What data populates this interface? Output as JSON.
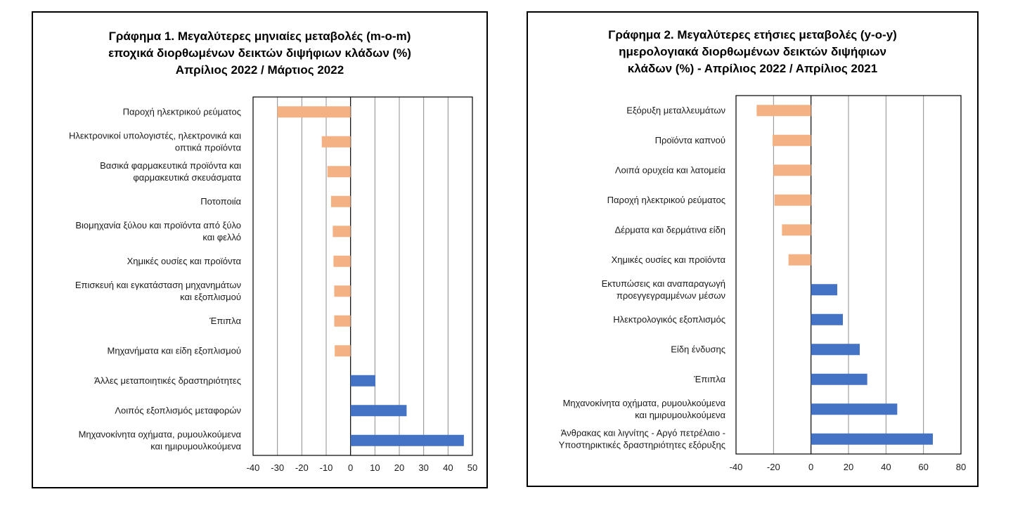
{
  "chart_data": [
    {
      "type": "bar",
      "orientation": "horizontal",
      "title_lines": [
        "Γράφημα 1. Μεγαλύτερες μηνιαίες μεταβολές (m-o-m)",
        "εποχικά διορθωμένων δεικτών διψήφιων κλάδων (%)",
        "Απρίλιος 2022 / Μάρτιος 2022"
      ],
      "categories": [
        [
          "Παροχή ηλεκτρικού ρεύματος"
        ],
        [
          "Ηλεκτρονικοί υπολογιστές, ηλεκτρονικά και",
          "οπτικά προϊόντα"
        ],
        [
          "Βασικά φαρμακευτικά προϊόντα και",
          "φαρμακευτικά σκευάσματα"
        ],
        [
          "Ποτοποιία"
        ],
        [
          "Βιομηχανία ξύλου και προϊόντα από ξύλο",
          "και φελλό"
        ],
        [
          "Χημικές ουσίες και προϊόντα"
        ],
        [
          "Επισκευή και εγκατάσταση μηχανημάτων",
          "και εξοπλισμού"
        ],
        [
          "Έπιπλα"
        ],
        [
          "Μηχανήματα και είδη εξοπλισμού"
        ],
        [
          "Άλλες μεταποιητικές δραστηριότητες"
        ],
        [
          "Λοιπός εξοπλισμός μεταφορών"
        ],
        [
          "Μηχανοκίνητα οχήματα, ρυμουλκούμενα",
          "και ημιρυμουλκούμενα"
        ]
      ],
      "values": [
        -30,
        -11.8,
        -9.5,
        -8,
        -7.3,
        -7,
        -6.7,
        -6.7,
        -6.5,
        10.2,
        23,
        46.5
      ],
      "xlim": [
        -40,
        50
      ],
      "xticks": [
        -40,
        -30,
        -20,
        -10,
        0,
        10,
        20,
        30,
        40,
        50
      ],
      "xtick_labels": [
        "-40",
        "-30",
        "-20",
        "-10",
        "0",
        "10",
        "20",
        "30",
        "40",
        "50"
      ],
      "grid": true,
      "colors": {
        "negative": "#F4B183",
        "positive": "#4472C4"
      }
    },
    {
      "type": "bar",
      "orientation": "horizontal",
      "title_lines": [
        "Γράφημα 2. Μεγαλύτερες ετήσιες μεταβολές (y-o-y)",
        "ημερολογιακά διορθωμένων δεικτών διψήφιων",
        "κλάδων (%) - Απρίλιος 2022 / Απρίλιος 2021"
      ],
      "categories": [
        [
          "Εξόρυξη μεταλλευμάτων"
        ],
        [
          "Προϊόντα καπνού"
        ],
        [
          "Λοιπά ορυχεία και λατομεία"
        ],
        [
          "Παροχή ηλεκτρικού ρεύματος"
        ],
        [
          "Δέρματα και δερμάτινα είδη"
        ],
        [
          "Χημικές ουσίες και προϊόντα"
        ],
        [
          "Εκτυπώσεις και αναπαραγωγή",
          "προεγγεγραμμένων μέσων"
        ],
        [
          "Ηλεκτρολογικός εξοπλισμός"
        ],
        [
          "Είδη ένδυσης"
        ],
        [
          "Έπιπλα"
        ],
        [
          "Μηχανοκίνητα οχήματα, ρυμουλκούμενα",
          "και ημιρυμουλκούμενα"
        ],
        [
          "Άνθρακας και λιγνίτης - Αργό πετρέλαιο -",
          "Υποστηρικτικές δραστηριότητες εξόρυξης"
        ]
      ],
      "values": [
        -29,
        -20.5,
        -20,
        -19.5,
        -15.5,
        -12,
        14,
        17,
        26,
        30,
        46,
        65
      ],
      "xlim": [
        -40,
        80
      ],
      "xticks": [
        -40,
        -20,
        0,
        20,
        40,
        60,
        80
      ],
      "xtick_labels": [
        "-40",
        "-20",
        "0",
        "20",
        "40",
        "60",
        "80"
      ],
      "grid": true,
      "colors": {
        "negative": "#F4B183",
        "positive": "#4472C4"
      }
    }
  ]
}
